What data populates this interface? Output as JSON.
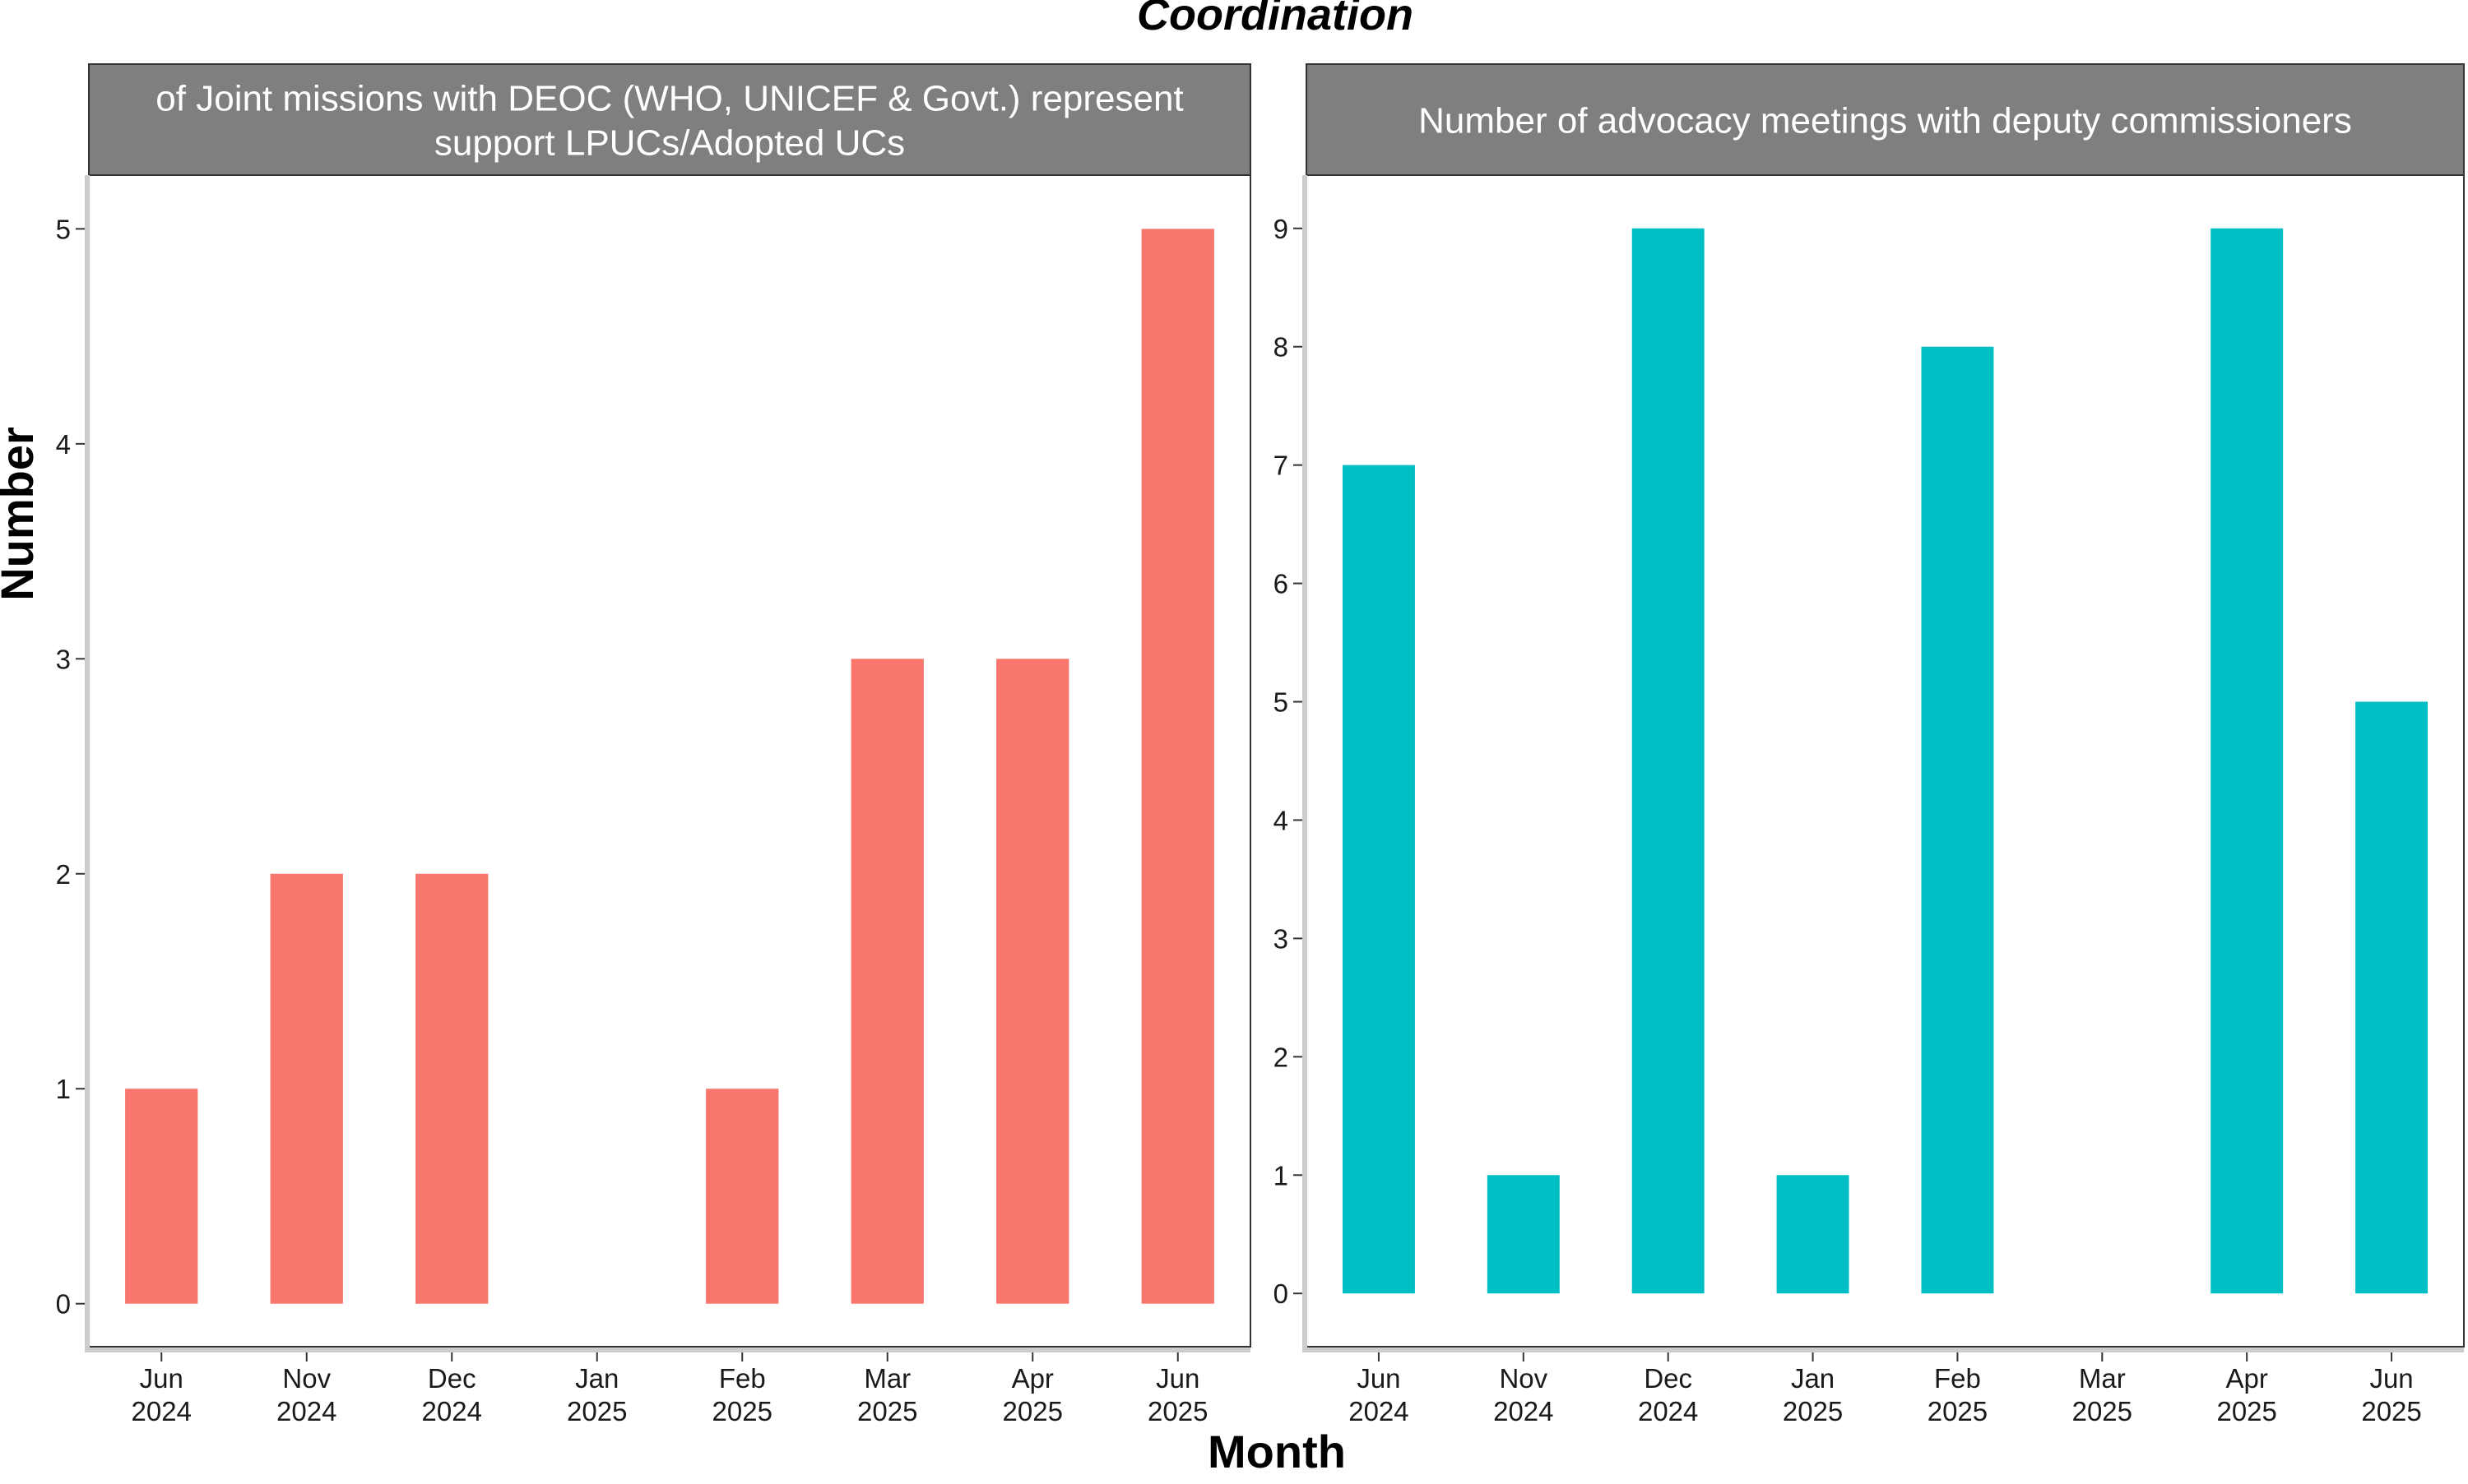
{
  "title": "Coordination",
  "xlabel": "Month",
  "ylabel": "Number",
  "colors": {
    "left": "#F8766D",
    "right": "#00BFC4",
    "strip": "#7f7f7f",
    "axis": "#cccccc"
  },
  "chart_data": [
    {
      "type": "bar",
      "title_lines": [
        "of Joint missions with DEOC (WHO, UNICEF & Govt.) represent",
        "support LPUCs/Adopted UCs"
      ],
      "categories": [
        [
          "Jun",
          "2024"
        ],
        [
          "Nov",
          "2024"
        ],
        [
          "Dec",
          "2024"
        ],
        [
          "Jan",
          "2025"
        ],
        [
          "Feb",
          "2025"
        ],
        [
          "Mar",
          "2025"
        ],
        [
          "Apr",
          "2025"
        ],
        [
          "Jun",
          "2025"
        ]
      ],
      "values": [
        1,
        2,
        2,
        0,
        1,
        3,
        3,
        5
      ],
      "ylim": [
        -0.2,
        5.25
      ],
      "yticks": [
        0,
        1,
        2,
        3,
        4,
        5
      ]
    },
    {
      "type": "bar",
      "title_lines": [
        "Number of advocacy meetings with deputy commissioners"
      ],
      "categories": [
        [
          "Jun",
          "2024"
        ],
        [
          "Nov",
          "2024"
        ],
        [
          "Dec",
          "2024"
        ],
        [
          "Jan",
          "2025"
        ],
        [
          "Feb",
          "2025"
        ],
        [
          "Mar",
          "2025"
        ],
        [
          "Apr",
          "2025"
        ],
        [
          "Jun",
          "2025"
        ]
      ],
      "values": [
        7,
        1,
        9,
        1,
        8,
        0,
        9,
        5
      ],
      "ylim": [
        -0.45,
        9.45
      ],
      "yticks": [
        0,
        1,
        2,
        3,
        4,
        5,
        6,
        7,
        8,
        9
      ]
    }
  ]
}
